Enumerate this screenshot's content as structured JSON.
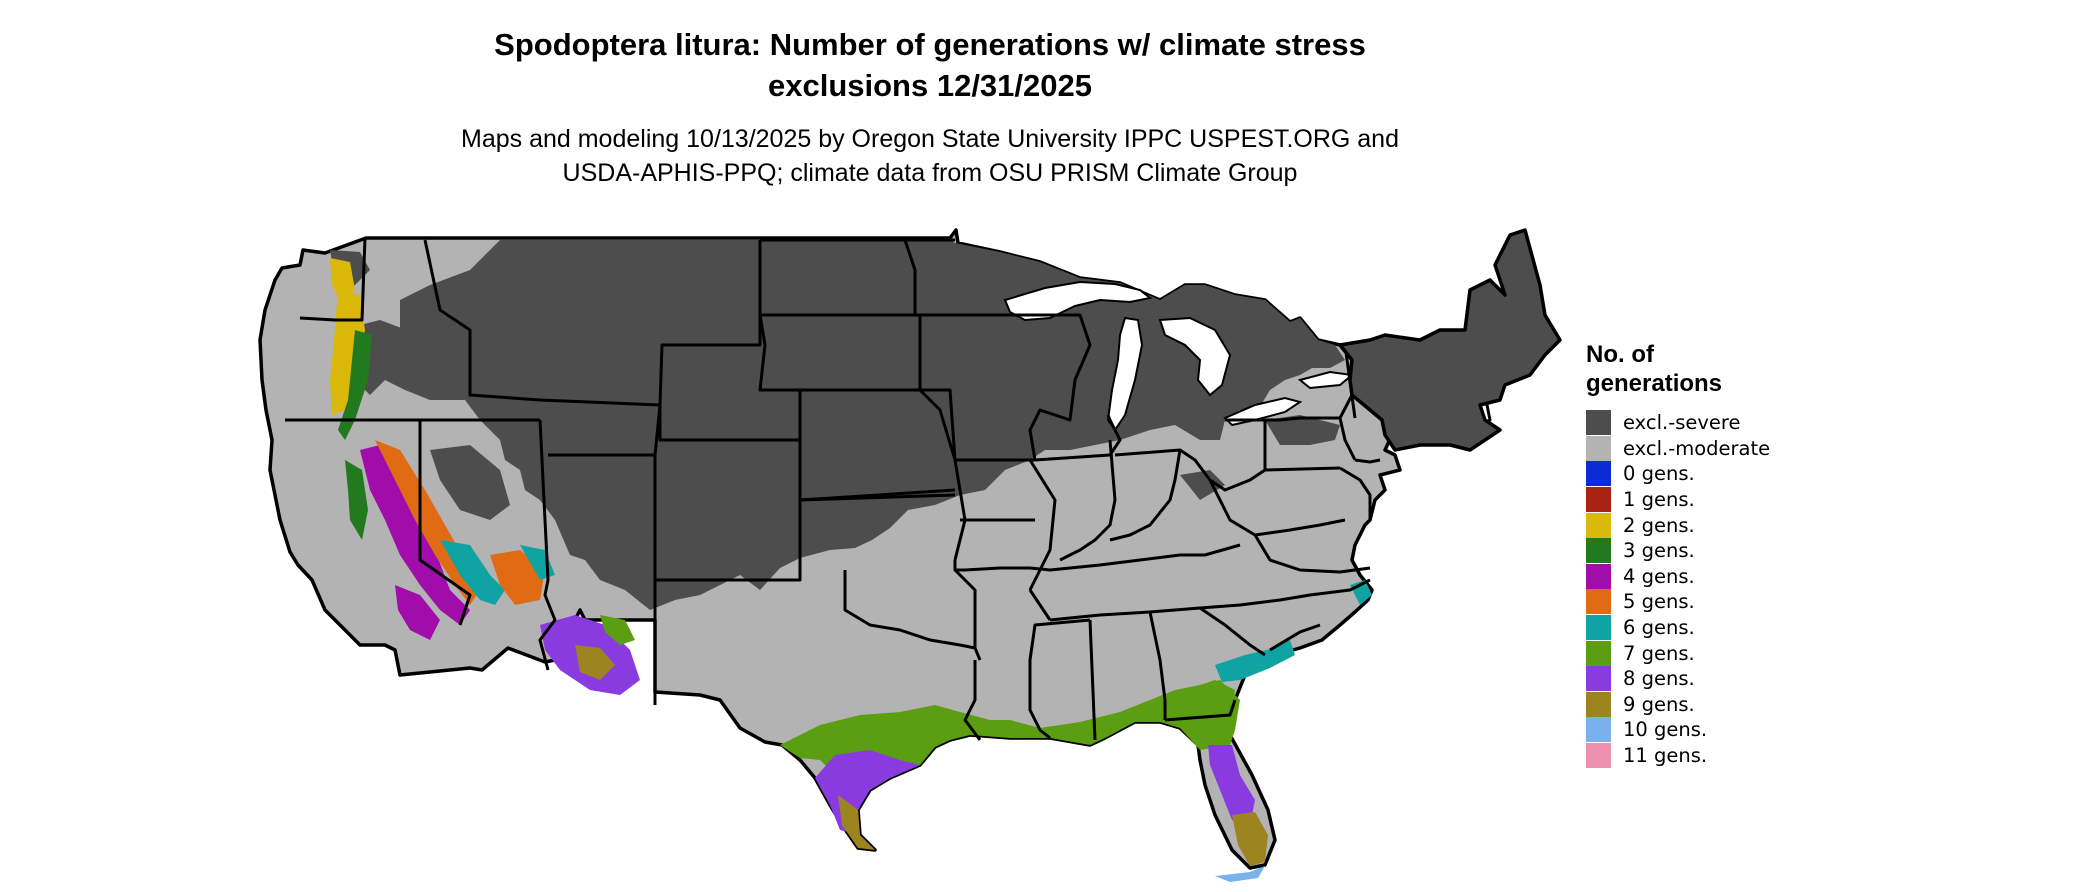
{
  "title_line1": "Spodoptera litura: Number of generations w/ climate stress",
  "title_line2": "exclusions 12/31/2025",
  "subtitle_line1": "Maps and modeling 10/13/2025 by Oregon State University IPPC USPEST.ORG and",
  "subtitle_line2": "USDA-APHIS-PPQ; climate data from OSU PRISM Climate Group",
  "legend": {
    "title": "No. of generations",
    "items": [
      {
        "label": "excl.-severe",
        "color": "#4d4d4d"
      },
      {
        "label": "excl.-moderate",
        "color": "#b3b3b3"
      },
      {
        "label": "0 gens.",
        "color": "#0a2bd6"
      },
      {
        "label": "1 gens.",
        "color": "#a82312"
      },
      {
        "label": "2 gens.",
        "color": "#dbb90a"
      },
      {
        "label": "3 gens.",
        "color": "#237a1e"
      },
      {
        "label": "4 gens.",
        "color": "#a10dab"
      },
      {
        "label": "5 gens.",
        "color": "#e06b14"
      },
      {
        "label": "6 gens.",
        "color": "#0fa3a3"
      },
      {
        "label": "7 gens.",
        "color": "#5b9e12"
      },
      {
        "label": "8 gens.",
        "color": "#8a3be0"
      },
      {
        "label": "9 gens.",
        "color": "#9c8421"
      },
      {
        "label": "10 gens.",
        "color": "#7ab0ee"
      },
      {
        "label": "11 gens.",
        "color": "#f090b0"
      }
    ]
  }
}
